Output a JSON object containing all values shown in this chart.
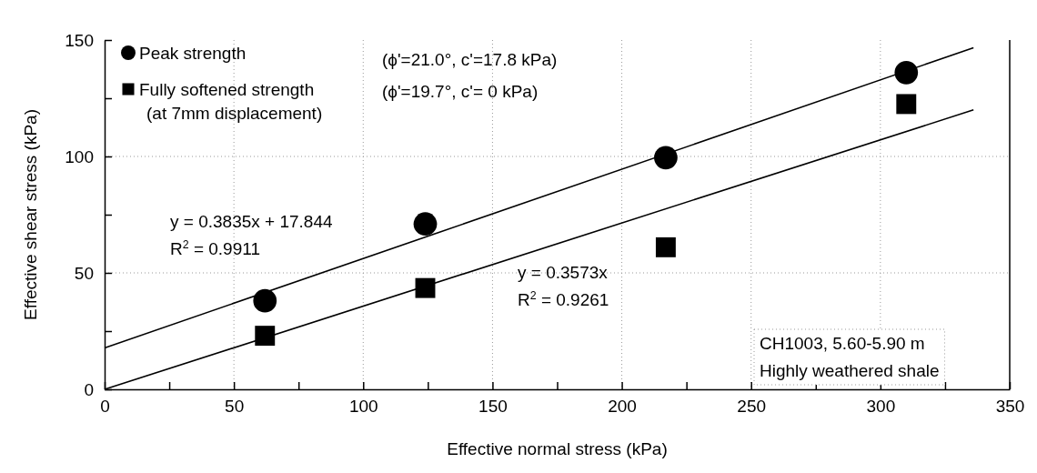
{
  "chart_data": {
    "type": "scatter",
    "xlabel": "Effective normal stress  (kPa)",
    "ylabel": "Effective shear stress (kPa)",
    "xlim": [
      0,
      350
    ],
    "ylim": [
      0,
      150
    ],
    "xticks": [
      0,
      {
        "value": 25,
        "label": null
      },
      50,
      {
        "value": 75,
        "label": null
      },
      100,
      {
        "value": 125,
        "label": null
      },
      150,
      {
        "value": 175,
        "label": null
      },
      200,
      {
        "value": 225,
        "label": null
      },
      250,
      {
        "value": 275,
        "label": null
      },
      300,
      {
        "value": 325,
        "label": null
      },
      350
    ],
    "yticks": [
      0,
      {
        "value": 25,
        "label": null
      },
      50,
      {
        "value": 75,
        "label": null
      },
      100,
      {
        "value": 125,
        "label": null
      },
      150
    ],
    "grid": true,
    "legend": "top left",
    "series": [
      {
        "name": "Peak strength",
        "color": "#000000",
        "marker": "circle",
        "x": [
          62,
          124,
          217,
          310
        ],
        "values": [
          38,
          71,
          99.5,
          136
        ]
      },
      {
        "name": "Fully softened strength\n(at 7mm displacement)",
        "color": "#000000",
        "marker": "square",
        "x": [
          62,
          124,
          217,
          310
        ],
        "values": [
          23,
          43.5,
          61,
          122.5
        ]
      },
      {
        "type": "line",
        "color": "#000000",
        "x": [
          0,
          336
        ],
        "values": [
          17.8,
          146.7
        ]
      },
      {
        "type": "line",
        "color": "#000000",
        "x": [
          0,
          336
        ],
        "values": [
          0,
          120
        ]
      }
    ],
    "annotations": [
      "(ϕ'=21.0°, c'=17.8 kPa)",
      "(ϕ'=19.7°, c'= 0 kPa)",
      "y = 0.3835x + 17.844\nR$^{2}$ = 0.9911",
      "y = 0.3573x\nR$^{2}$ = 0.9261",
      "CH1003, 5.60-5.90 m\nHighly weathered shale"
    ]
  }
}
